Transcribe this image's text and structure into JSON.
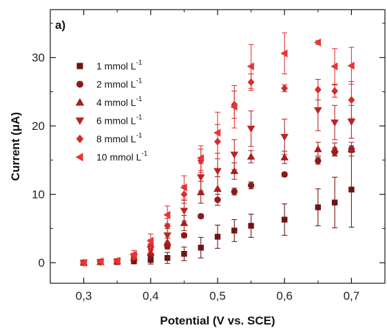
{
  "chart_data": {
    "type": "scatter",
    "panel_label": "a)",
    "xlabel": "Potential (V vs. SCE)",
    "ylabel_prefix": "Current (",
    "ylabel_mu": "μ",
    "ylabel_suffix": "A)",
    "xlim": [
      0.25,
      0.75
    ],
    "ylim": [
      -3,
      37
    ],
    "x_ticks": [
      0.3,
      0.4,
      0.5,
      0.6,
      0.7
    ],
    "x_tick_labels": [
      "0,3",
      "0,4",
      "0,5",
      "0,6",
      "0,7"
    ],
    "y_ticks": [
      0,
      10,
      20,
      30
    ],
    "y_tick_labels": [
      "0",
      "10",
      "20",
      "30"
    ],
    "legend_position": "top-left",
    "series": [
      {
        "name_main": "1 mmol L",
        "name_sup": "-1",
        "marker": "square",
        "color": "#6e1414",
        "points": [
          {
            "x": 0.3,
            "y": 0.0,
            "err": 0.1
          },
          {
            "x": 0.325,
            "y": 0.1,
            "err": 0.1
          },
          {
            "x": 0.35,
            "y": 0.1,
            "err": 0.1
          },
          {
            "x": 0.375,
            "y": 0.2,
            "err": 0.3
          },
          {
            "x": 0.4,
            "y": 0.4,
            "err": 0.6
          },
          {
            "x": 0.425,
            "y": 0.7,
            "err": 0.8
          },
          {
            "x": 0.45,
            "y": 1.3,
            "err": 1.0
          },
          {
            "x": 0.475,
            "y": 2.2,
            "err": 1.5
          },
          {
            "x": 0.5,
            "y": 3.8,
            "err": 1.7
          },
          {
            "x": 0.525,
            "y": 4.7,
            "err": 1.6
          },
          {
            "x": 0.55,
            "y": 5.4,
            "err": 1.7
          },
          {
            "x": 0.6,
            "y": 6.3,
            "err": 2.3
          },
          {
            "x": 0.65,
            "y": 8.1,
            "err": 2.7
          },
          {
            "x": 0.675,
            "y": 8.8,
            "err": 3.7
          },
          {
            "x": 0.7,
            "y": 10.7,
            "err": 5.5
          }
        ]
      },
      {
        "name_main": "2 mmol L",
        "name_sup": "-1",
        "marker": "circle",
        "color": "#8c1a1a",
        "points": [
          {
            "x": 0.3,
            "y": 0.0,
            "err": 0.1
          },
          {
            "x": 0.325,
            "y": 0.1,
            "err": 0.1
          },
          {
            "x": 0.35,
            "y": 0.2,
            "err": 0.1
          },
          {
            "x": 0.375,
            "y": 0.6,
            "err": 0.2
          },
          {
            "x": 0.4,
            "y": 1.1,
            "err": 0.3
          },
          {
            "x": 0.425,
            "y": 2.4,
            "err": 0.4
          },
          {
            "x": 0.45,
            "y": 4.0,
            "err": 0.3
          },
          {
            "x": 0.475,
            "y": 6.8,
            "err": 0.3
          },
          {
            "x": 0.5,
            "y": 9.2,
            "err": 0.8
          },
          {
            "x": 0.525,
            "y": 10.4,
            "err": 0.5
          },
          {
            "x": 0.55,
            "y": 11.3,
            "err": 0.5
          },
          {
            "x": 0.6,
            "y": 12.9,
            "err": 0.3
          },
          {
            "x": 0.65,
            "y": 14.9,
            "err": 0.5
          },
          {
            "x": 0.675,
            "y": 16.2,
            "err": 0.6
          },
          {
            "x": 0.7,
            "y": 16.6,
            "err": 0.5
          }
        ]
      },
      {
        "name_main": "4 mmol L",
        "name_sup": "-1",
        "marker": "triangle-up",
        "color": "#a51f1f",
        "points": [
          {
            "x": 0.3,
            "y": 0.0,
            "err": 0.1
          },
          {
            "x": 0.325,
            "y": 0.1,
            "err": 0.1
          },
          {
            "x": 0.35,
            "y": 0.2,
            "err": 0.1
          },
          {
            "x": 0.375,
            "y": 0.7,
            "err": 0.3
          },
          {
            "x": 0.4,
            "y": 1.5,
            "err": 0.4
          },
          {
            "x": 0.425,
            "y": 3.0,
            "err": 0.6
          },
          {
            "x": 0.45,
            "y": 5.8,
            "err": 1.1
          },
          {
            "x": 0.475,
            "y": 10.3,
            "err": 1.6
          },
          {
            "x": 0.5,
            "y": 10.8,
            "err": 1.8
          },
          {
            "x": 0.525,
            "y": 13.4,
            "err": 1.2
          },
          {
            "x": 0.55,
            "y": 15.5,
            "err": 0.9
          },
          {
            "x": 0.6,
            "y": 15.4,
            "err": 0.9
          },
          {
            "x": 0.65,
            "y": 16.6,
            "err": 1.0
          },
          {
            "x": 0.675,
            "y": 16.6,
            "err": 0.9
          },
          {
            "x": 0.7,
            "y": 16.6,
            "err": 1.0
          }
        ]
      },
      {
        "name_main": "6 mmol L",
        "name_sup": "-1",
        "marker": "triangle-down",
        "color": "#bd2323",
        "points": [
          {
            "x": 0.3,
            "y": 0.0,
            "err": 0.1
          },
          {
            "x": 0.325,
            "y": 0.1,
            "err": 0.1
          },
          {
            "x": 0.35,
            "y": 0.2,
            "err": 0.1
          },
          {
            "x": 0.375,
            "y": 0.9,
            "err": 0.4
          },
          {
            "x": 0.4,
            "y": 2.0,
            "err": 0.7
          },
          {
            "x": 0.425,
            "y": 4.0,
            "err": 1.0
          },
          {
            "x": 0.45,
            "y": 7.6,
            "err": 1.5
          },
          {
            "x": 0.475,
            "y": 12.5,
            "err": 2.0
          },
          {
            "x": 0.5,
            "y": 13.4,
            "err": 2.6
          },
          {
            "x": 0.525,
            "y": 15.8,
            "err": 2.2
          },
          {
            "x": 0.55,
            "y": 19.6,
            "err": 2.6
          },
          {
            "x": 0.6,
            "y": 18.4,
            "err": 2.6
          },
          {
            "x": 0.65,
            "y": 22.3,
            "err": 3.0
          },
          {
            "x": 0.675,
            "y": 20.5,
            "err": 2.5
          },
          {
            "x": 0.7,
            "y": 20.6,
            "err": 2.4
          }
        ]
      },
      {
        "name_main": "8 mmol L",
        "name_sup": "-1",
        "marker": "diamond",
        "color": "#d42a2a",
        "points": [
          {
            "x": 0.3,
            "y": 0.0,
            "err": 0.1
          },
          {
            "x": 0.325,
            "y": 0.1,
            "err": 0.1
          },
          {
            "x": 0.35,
            "y": 0.2,
            "err": 0.1
          },
          {
            "x": 0.375,
            "y": 1.0,
            "err": 0.4
          },
          {
            "x": 0.4,
            "y": 2.6,
            "err": 0.8
          },
          {
            "x": 0.425,
            "y": 5.4,
            "err": 1.1
          },
          {
            "x": 0.45,
            "y": 10.0,
            "err": 1.3
          },
          {
            "x": 0.475,
            "y": 14.9,
            "err": 1.7
          },
          {
            "x": 0.5,
            "y": 17.7,
            "err": 2.5
          },
          {
            "x": 0.525,
            "y": 23.1,
            "err": 2.0
          },
          {
            "x": 0.55,
            "y": 26.4,
            "err": 1.2
          },
          {
            "x": 0.6,
            "y": 25.5,
            "err": 0.5
          },
          {
            "x": 0.65,
            "y": 25.3,
            "err": 1.5
          },
          {
            "x": 0.675,
            "y": 25.1,
            "err": 0.9
          },
          {
            "x": 0.7,
            "y": 23.8,
            "err": 2.7
          }
        ]
      },
      {
        "name_main": "10 mmol L",
        "name_sup": "-1",
        "marker": "triangle-left",
        "color": "#e83535",
        "points": [
          {
            "x": 0.3,
            "y": 0.0,
            "err": 0.1
          },
          {
            "x": 0.325,
            "y": 0.2,
            "err": 0.1
          },
          {
            "x": 0.35,
            "y": 0.3,
            "err": 0.1
          },
          {
            "x": 0.375,
            "y": 1.2,
            "err": 0.6
          },
          {
            "x": 0.4,
            "y": 3.2,
            "err": 1.0
          },
          {
            "x": 0.425,
            "y": 7.0,
            "err": 1.3
          },
          {
            "x": 0.45,
            "y": 11.0,
            "err": 1.7
          },
          {
            "x": 0.475,
            "y": 15.3,
            "err": 1.8
          },
          {
            "x": 0.5,
            "y": 19.0,
            "err": 3.0
          },
          {
            "x": 0.525,
            "y": 22.8,
            "err": 3.1
          },
          {
            "x": 0.55,
            "y": 28.7,
            "err": 3.2
          },
          {
            "x": 0.6,
            "y": 30.6,
            "err": 3.0
          },
          {
            "x": 0.65,
            "y": 32.2,
            "err": 0.3
          },
          {
            "x": 0.675,
            "y": 28.7,
            "err": 2.6
          },
          {
            "x": 0.7,
            "y": 28.8,
            "err": 2.7
          }
        ]
      }
    ]
  }
}
